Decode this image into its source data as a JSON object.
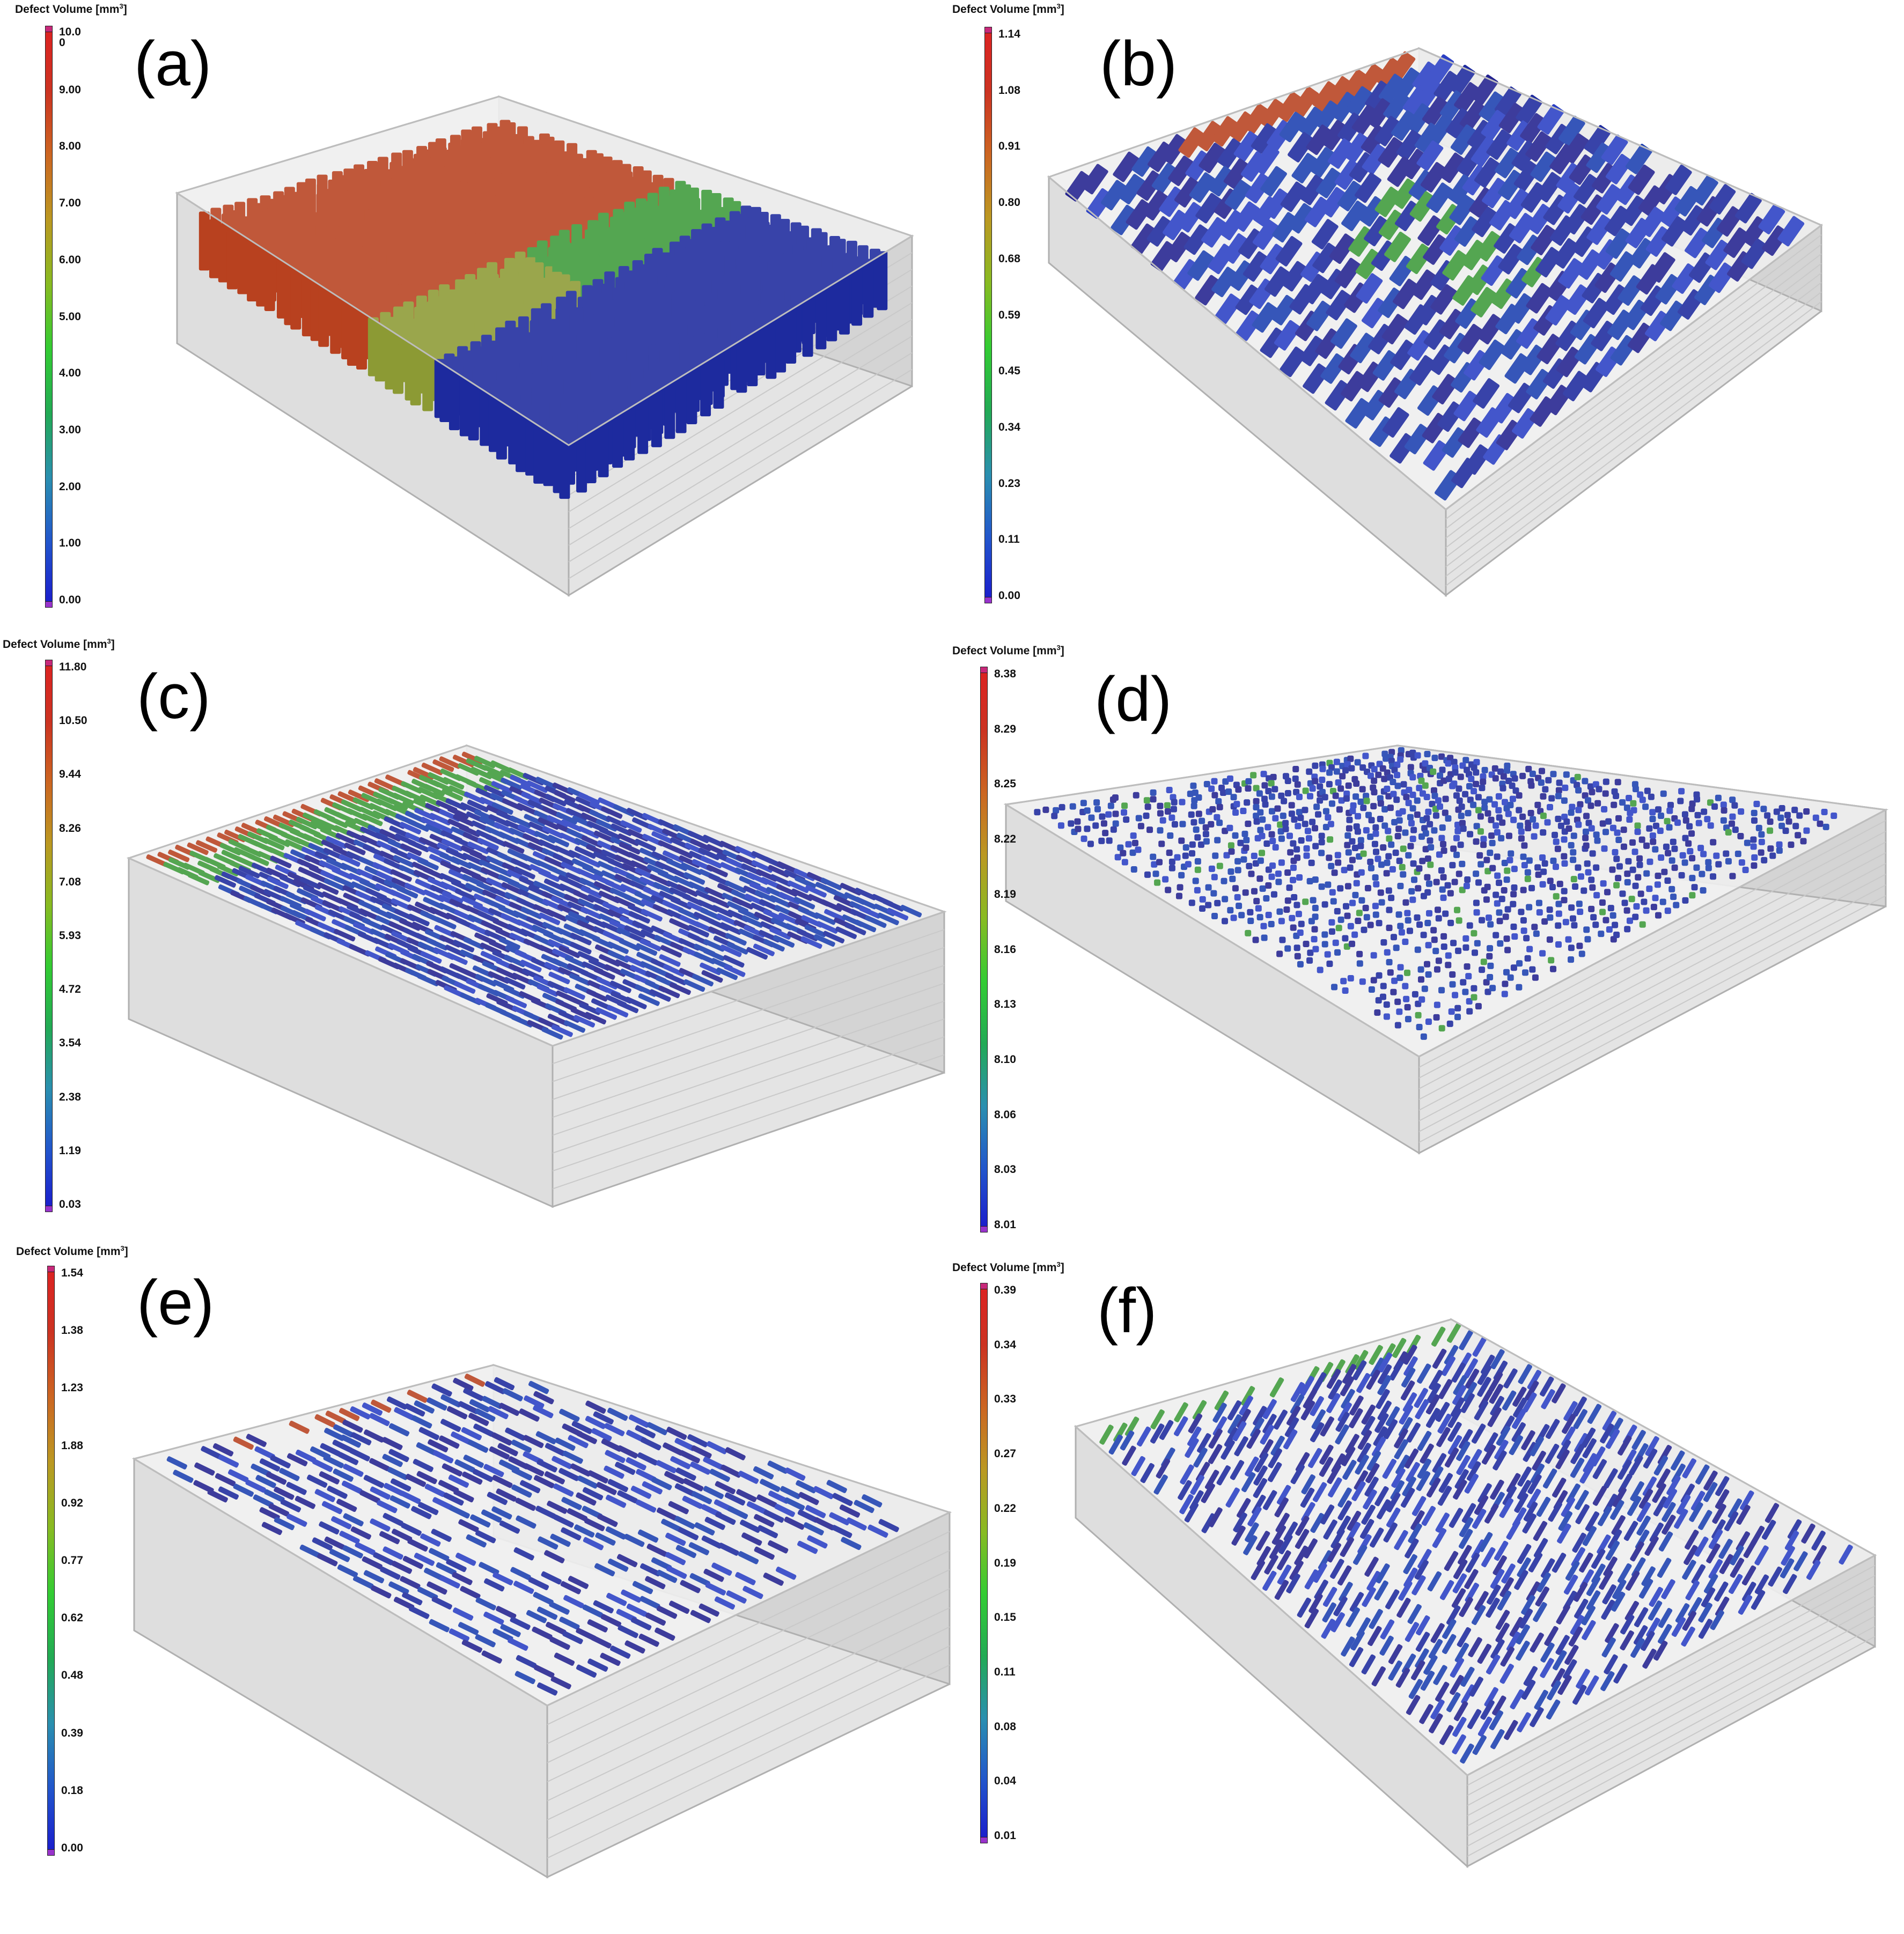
{
  "colorbar_title": "Defect Volume [mm",
  "colorbar_title_sup": "3",
  "colorbar_title_end": "]",
  "colors": {
    "gradient": [
      "#1a1acc",
      "#2255cc",
      "#2a8fb0",
      "#22aa55",
      "#33cc33",
      "#88bb22",
      "#bb9922",
      "#cc6622",
      "#cc3322",
      "#dd2222"
    ],
    "defect_blue": "#1d2a9e",
    "defect_red": "#b8411f",
    "defect_green": "#3d9a3a",
    "defect_olive": "#8c9a34",
    "block_fill": "#dcdcdc",
    "block_edge": "#b0b0b0"
  },
  "panels": [
    {
      "label": "(a)",
      "ticks": [
        "10.0\n0",
        "9.00",
        "8.00",
        "7.00",
        "6.00",
        "5.00",
        "4.00",
        "3.00",
        "2.00",
        "1.00",
        "0.00"
      ]
    },
    {
      "label": "(b)",
      "ticks": [
        "1.14",
        "1.08",
        "0.91",
        "0.80",
        "0.68",
        "0.59",
        "0.45",
        "0.34",
        "0.23",
        "0.11",
        "0.00"
      ]
    },
    {
      "label": "(c)",
      "ticks": [
        "11.80",
        "10.50",
        "9.44",
        "8.26",
        "7.08",
        "5.93",
        "4.72",
        "3.54",
        "2.38",
        "1.19",
        "0.03"
      ]
    },
    {
      "label": "(d)",
      "ticks": [
        "8.38",
        "8.29",
        "8.25",
        "8.22",
        "8.19",
        "8.16",
        "8.13",
        "8.10",
        "8.06",
        "8.03",
        "8.01"
      ]
    },
    {
      "label": "(e)",
      "ticks": [
        "1.54",
        "1.38",
        "1.23",
        "1.88",
        "0.92",
        "0.77",
        "0.62",
        "0.48",
        "0.39",
        "0.18",
        "0.00"
      ]
    },
    {
      "label": "(f)",
      "ticks": [
        "0.39",
        "0.34",
        "0.33",
        "0.27",
        "0.22",
        "0.19",
        "0.15",
        "0.11",
        "0.08",
        "0.04",
        "0.01"
      ]
    }
  ]
}
